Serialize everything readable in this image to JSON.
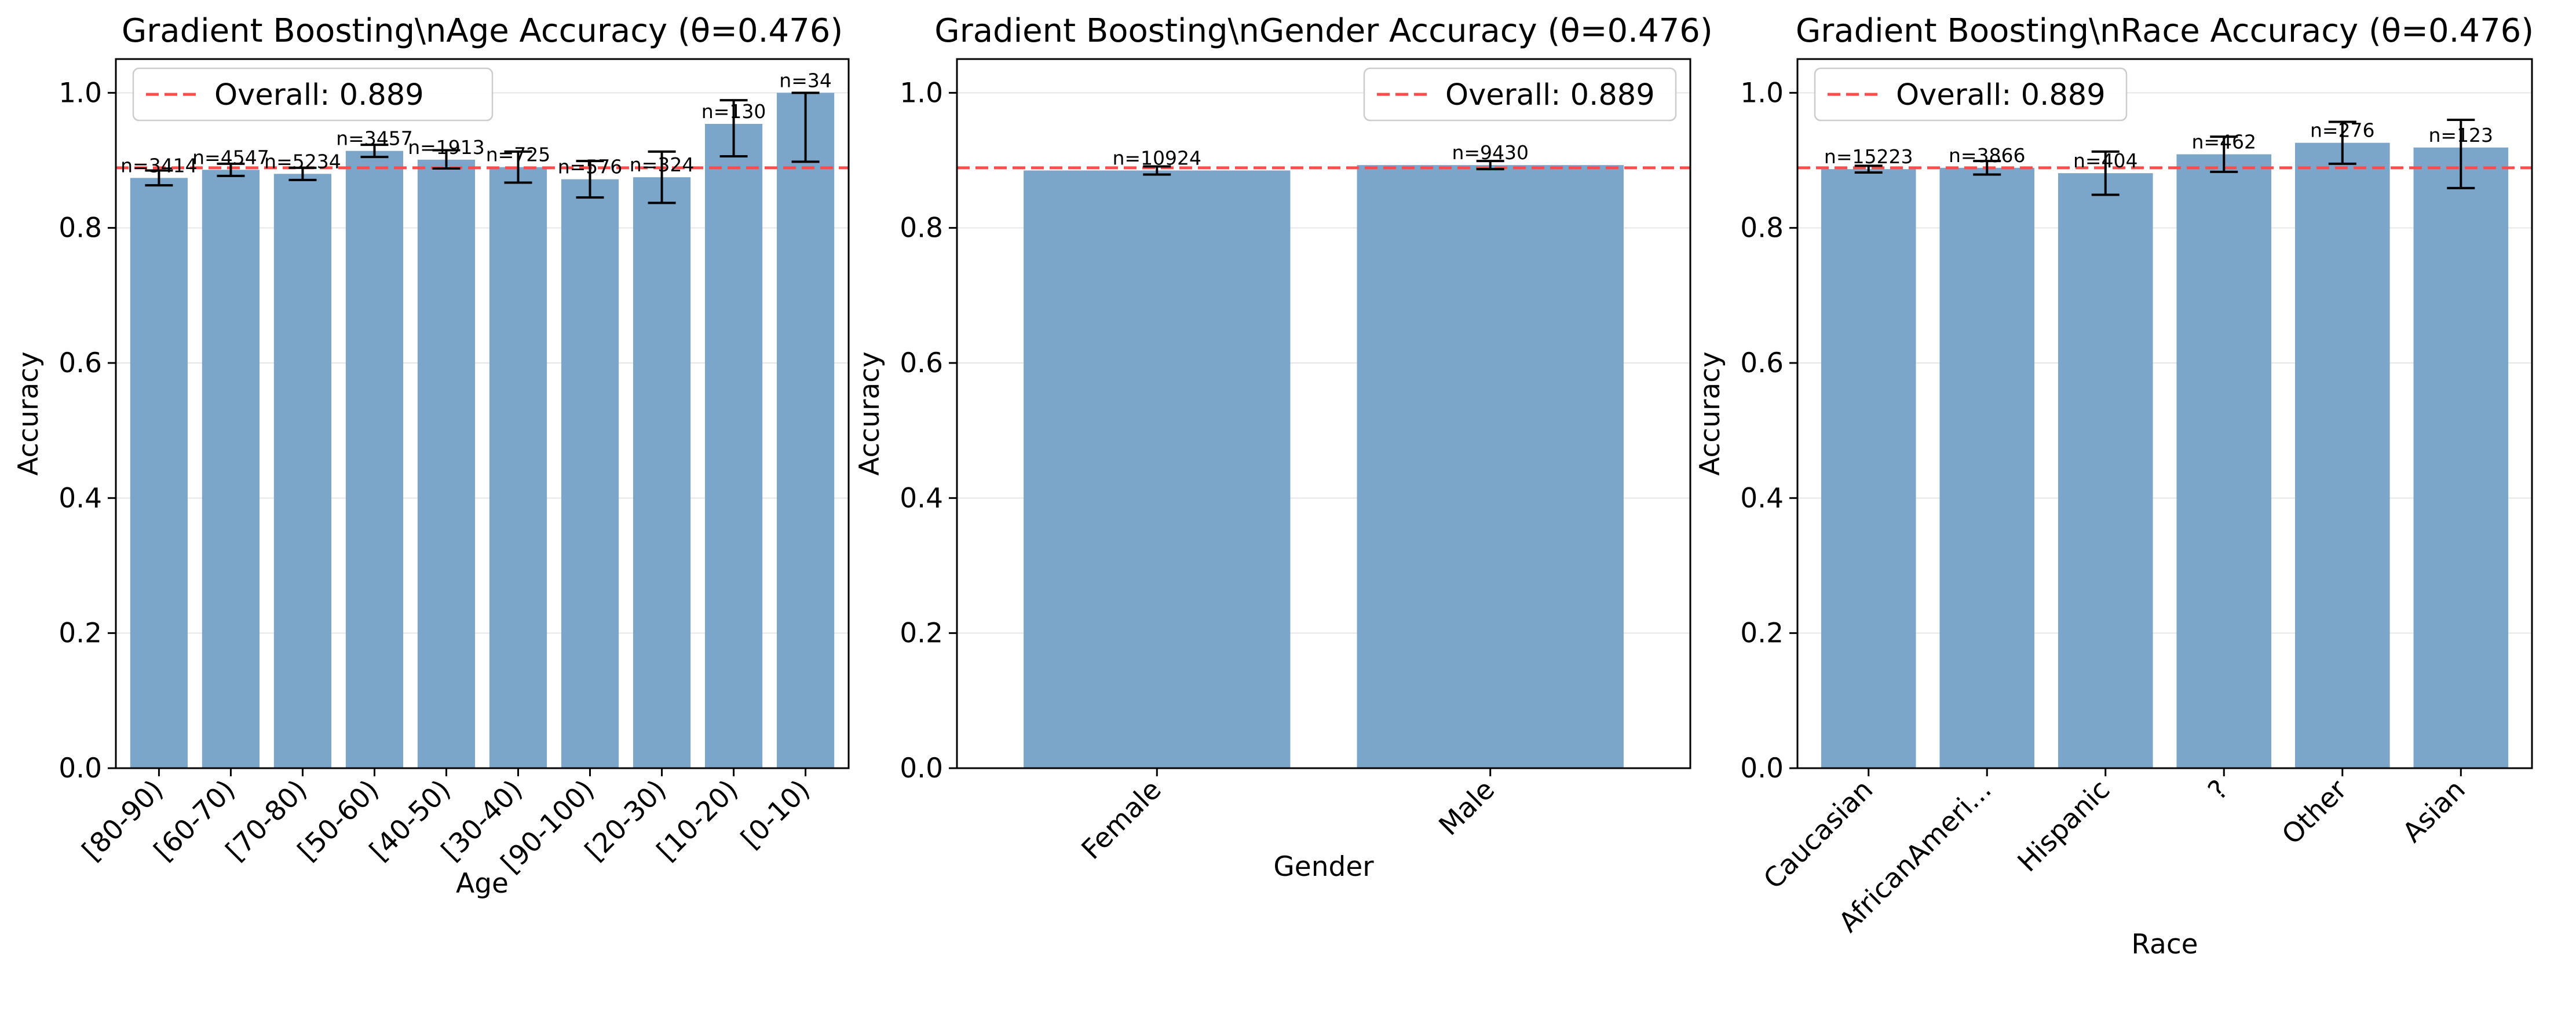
{
  "chart_data": [
    {
      "type": "bar",
      "title": "Gradient Boosting\\nAge Accuracy (θ=0.476)",
      "xlabel": "Age",
      "ylabel": "Accuracy",
      "ylim": [
        0,
        1.05
      ],
      "yticks": [
        "0.0",
        "0.2",
        "0.4",
        "0.6",
        "0.8",
        "1.0"
      ],
      "categories": [
        "[80-90)",
        "[60-70)",
        "[70-80)",
        "[50-60)",
        "[40-50)",
        "[30-40)",
        "[90-100)",
        "[20-30)",
        "[10-20)",
        "[0-10)"
      ],
      "values": [
        0.874,
        0.886,
        0.88,
        0.914,
        0.901,
        0.89,
        0.872,
        0.875,
        0.954,
        1.0
      ],
      "error_low": [
        0.863,
        0.877,
        0.871,
        0.905,
        0.888,
        0.867,
        0.845,
        0.837,
        0.906,
        0.898
      ],
      "error_high": [
        0.885,
        0.895,
        0.889,
        0.923,
        0.915,
        0.913,
        0.899,
        0.913,
        0.989,
        1.0
      ],
      "annotations": [
        "n=3414",
        "n=4547",
        "n=5234",
        "n=3457",
        "n=1913",
        "n=725",
        "n=576",
        "n=324",
        "n=130",
        "n=34"
      ],
      "reference_line": {
        "value": 0.889,
        "label": "Overall: 0.889"
      },
      "legend": "top-left",
      "grid": "y"
    },
    {
      "type": "bar",
      "title": "Gradient Boosting\\nGender Accuracy (θ=0.476)",
      "xlabel": "Gender",
      "ylabel": "Accuracy",
      "ylim": [
        0,
        1.05
      ],
      "yticks": [
        "0.0",
        "0.2",
        "0.4",
        "0.6",
        "0.8",
        "1.0"
      ],
      "categories": [
        "Female",
        "Male"
      ],
      "values": [
        0.885,
        0.893
      ],
      "error_low": [
        0.879,
        0.887
      ],
      "error_high": [
        0.891,
        0.899
      ],
      "annotations": [
        "n=10924",
        "n=9430"
      ],
      "reference_line": {
        "value": 0.889,
        "label": "Overall: 0.889"
      },
      "legend": "top-right",
      "grid": "y"
    },
    {
      "type": "bar",
      "title": "Gradient Boosting\\nRace Accuracy (θ=0.476)",
      "xlabel": "Race",
      "ylabel": "Accuracy",
      "ylim": [
        0,
        1.05
      ],
      "yticks": [
        "0.0",
        "0.2",
        "0.4",
        "0.6",
        "0.8",
        "1.0"
      ],
      "categories": [
        "Caucasian",
        "AfricanAmeri...",
        "Hispanic",
        "?",
        "Other",
        "Asian"
      ],
      "values": [
        0.887,
        0.889,
        0.881,
        0.909,
        0.926,
        0.919
      ],
      "error_low": [
        0.882,
        0.879,
        0.849,
        0.883,
        0.895,
        0.859
      ],
      "error_high": [
        0.892,
        0.899,
        0.913,
        0.935,
        0.957,
        0.96
      ],
      "annotations": [
        "n=15223",
        "n=3866",
        "n=404",
        "n=462",
        "n=276",
        "n=123"
      ],
      "reference_line": {
        "value": 0.889,
        "label": "Overall: 0.889"
      },
      "legend": "top-left",
      "grid": "y"
    }
  ],
  "colors": {
    "bar": "#7ba6ca",
    "reference_line": "#ff4d4d",
    "errorbar": "#000000",
    "grid": "#e6e6e6",
    "axes": "#000000"
  }
}
